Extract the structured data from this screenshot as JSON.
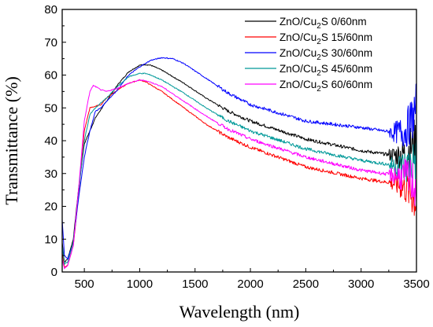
{
  "chart_data": {
    "type": "line",
    "title": "",
    "xlabel": "Wavelength (nm)",
    "ylabel": "Transmittance (%)",
    "xlim": [
      300,
      3500
    ],
    "ylim": [
      0,
      80
    ],
    "xticks": [
      500,
      1000,
      1500,
      2000,
      2500,
      3000,
      3500
    ],
    "yticks": [
      0,
      10,
      20,
      30,
      40,
      50,
      60,
      70,
      80
    ],
    "grid": false,
    "legend_position": "top-right",
    "series": [
      {
        "name": "ZnO/Cu2S 0/60nm",
        "label_parts": [
          "ZnO/Cu",
          "2",
          "S 0/60nm"
        ],
        "color": "#000000",
        "x": [
          300,
          320,
          350,
          400,
          450,
          500,
          550,
          600,
          700,
          800,
          900,
          1000,
          1050,
          1100,
          1200,
          1400,
          1600,
          1800,
          2000,
          2500,
          3000,
          3200,
          3300,
          3400,
          3450,
          3500
        ],
        "y": [
          9,
          3,
          4,
          10,
          26,
          39,
          43,
          47,
          52,
          57,
          61,
          63,
          63.2,
          63,
          61.5,
          57.5,
          53,
          49,
          46,
          40.5,
          37,
          36,
          35.5,
          36,
          38,
          40
        ]
      },
      {
        "name": "ZnO/Cu2S 15/60nm",
        "label_parts": [
          "ZnO/Cu",
          "2",
          "S 15/60nm"
        ],
        "color": "#ff0000",
        "x": [
          300,
          320,
          350,
          400,
          450,
          500,
          550,
          600,
          650,
          700,
          800,
          900,
          1000,
          1050,
          1100,
          1200,
          1400,
          1600,
          1800,
          2000,
          2500,
          3000,
          3200,
          3300,
          3400,
          3450,
          3500
        ],
        "y": [
          6,
          1.5,
          2,
          8,
          24,
          43,
          50,
          50.5,
          51,
          53,
          55.5,
          57.5,
          58.5,
          58,
          57,
          55,
          50,
          45,
          41,
          38,
          32,
          28.5,
          27.5,
          27,
          26,
          24,
          22
        ]
      },
      {
        "name": "ZnO/Cu2S 30/60nm",
        "label_parts": [
          "ZnO/Cu",
          "2",
          "S 30/60nm"
        ],
        "color": "#0000ff",
        "x": [
          300,
          320,
          350,
          400,
          450,
          500,
          550,
          600,
          650,
          700,
          800,
          900,
          1000,
          1100,
          1200,
          1300,
          1400,
          1600,
          1800,
          2000,
          2500,
          3000,
          3200,
          3300,
          3400,
          3450,
          3500
        ],
        "y": [
          16,
          5,
          4,
          9,
          23,
          35,
          43,
          49,
          50,
          52,
          55.5,
          60,
          62.5,
          64.5,
          65.3,
          65,
          63.5,
          59,
          54.5,
          51,
          46,
          44,
          43,
          42.5,
          43,
          46,
          50
        ]
      },
      {
        "name": "ZnO/Cu2S 45/60nm",
        "label_parts": [
          "ZnO/Cu",
          "2",
          "S 45/60nm"
        ],
        "color": "#009999",
        "x": [
          300,
          320,
          350,
          400,
          450,
          500,
          550,
          600,
          700,
          800,
          900,
          1000,
          1050,
          1100,
          1200,
          1400,
          1600,
          1800,
          2000,
          2500,
          3000,
          3200,
          3300,
          3400,
          3450,
          3500
        ],
        "y": [
          8,
          2.5,
          3,
          9,
          25,
          40,
          48,
          50,
          53,
          56.5,
          59.5,
          60.5,
          60.5,
          60,
          58.5,
          54.5,
          50,
          46,
          43,
          37.5,
          34,
          33,
          32.5,
          32,
          33,
          34
        ]
      },
      {
        "name": "ZnO/Cu2S 60/60nm",
        "label_parts": [
          "ZnO/Cu",
          "2",
          "S 60/60nm"
        ],
        "color": "#ff00ff",
        "x": [
          300,
          320,
          350,
          400,
          450,
          500,
          550,
          580,
          600,
          650,
          700,
          800,
          900,
          1000,
          1050,
          1100,
          1200,
          1400,
          1600,
          1800,
          2000,
          2500,
          3000,
          3200,
          3300,
          3400,
          3450,
          3500
        ],
        "y": [
          4,
          1,
          2,
          8,
          26,
          46,
          55,
          56.8,
          56.5,
          55.5,
          55,
          56,
          57.5,
          58.5,
          58.3,
          57.8,
          56.5,
          52,
          47.5,
          43.5,
          40.5,
          35,
          31,
          30,
          29.5,
          29,
          28,
          26
        ]
      }
    ]
  }
}
